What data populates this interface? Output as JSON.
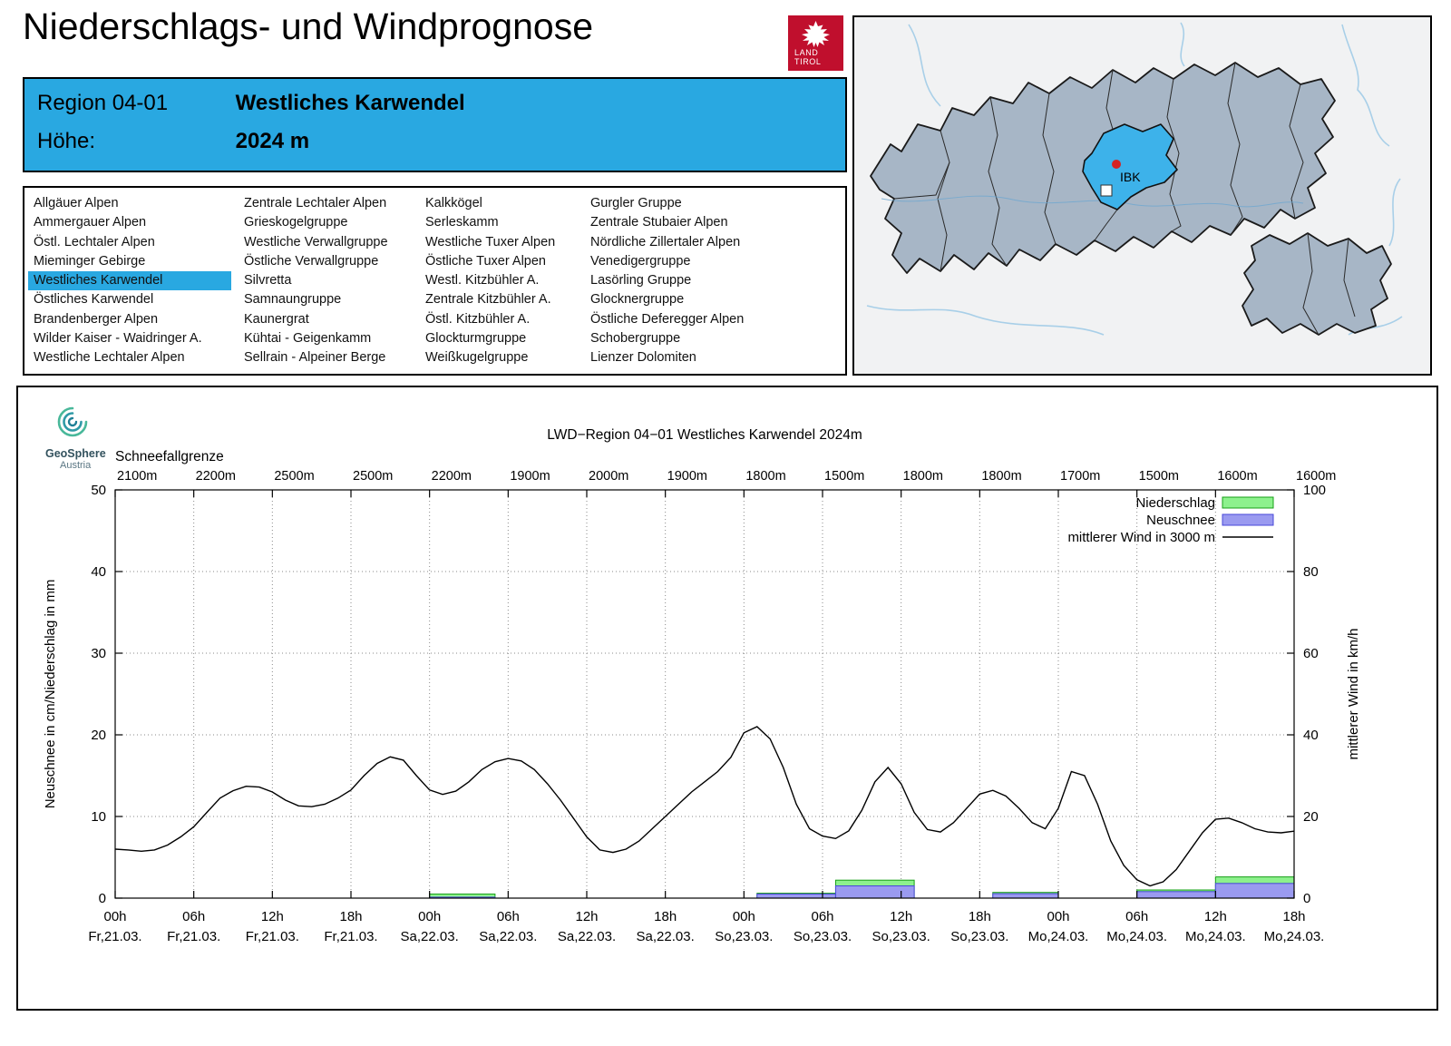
{
  "page": {
    "title": "Niederschlags- und Windprognose"
  },
  "land_tirol_logo": {
    "line1": "LAND",
    "line2": "TIROL"
  },
  "region_header": {
    "region_label": "Region 04-01",
    "region_name": "Westliches Karwendel",
    "hoehe_label": "Höhe:",
    "hoehe_value": "2024 m"
  },
  "region_list": {
    "selected": "Westliches Karwendel",
    "columns": [
      [
        "Allgäuer Alpen",
        "Ammergauer Alpen",
        "Östl. Lechtaler Alpen",
        "Mieminger Gebirge",
        "Westliches Karwendel",
        "Östliches Karwendel",
        "Brandenberger Alpen",
        "Wilder Kaiser - Waidringer A.",
        "Westliche Lechtaler Alpen"
      ],
      [
        "Zentrale Lechtaler Alpen",
        "Grieskogelgruppe",
        "Westliche Verwallgruppe",
        "Östliche Verwallgruppe",
        "Silvretta",
        "Samnaungruppe",
        "Kaunergrat",
        "Kühtai - Geigenkamm",
        "Sellrain - Alpeiner Berge"
      ],
      [
        "Kalkkögel",
        "Serleskamm",
        "Westliche Tuxer Alpen",
        "Östliche Tuxer Alpen",
        "Westl. Kitzbühler A.",
        "Zentrale Kitzbühler A.",
        "Östl. Kitzbühler A.",
        "Glockturmgruppe",
        "Weißkugelgruppe"
      ],
      [
        "Gurgler Gruppe",
        "Zentrale Stubaier Alpen",
        "Nördliche Zillertaler Alpen",
        "Venedigergruppe",
        "Lasörling Gruppe",
        "Glocknergruppe",
        "Östliche Deferegger Alpen",
        "Schobergruppe",
        "Lienzer Dolomiten"
      ]
    ]
  },
  "map": {
    "marker_label": "IBK"
  },
  "geosphere_logo": {
    "line1": "GeoSphere",
    "line2": "Austria"
  },
  "chart_data": {
    "type": "line+bar",
    "title": "LWD−Region 04−01 Westliches Karwendel 2024m",
    "snowline_label": "Schneefallgrenze",
    "snowline_values": [
      "2100m",
      "2200m",
      "2500m",
      "2500m",
      "2200m",
      "1900m",
      "2000m",
      "1900m",
      "1800m",
      "1500m",
      "1800m",
      "1800m",
      "1700m",
      "1500m",
      "1600m",
      "1600m"
    ],
    "ylabel_left": "Neuschnee in cm/Niederschlag in mm",
    "ylabel_right": "mittlerer Wind in km/h",
    "ylim_left": [
      0,
      50
    ],
    "ylim_right": [
      0,
      100
    ],
    "ytick_step_left": 10,
    "ytick_step_right": 20,
    "x_hours_range": [
      0,
      90
    ],
    "grid": true,
    "legend_position": "top-right",
    "x_ticks": [
      {
        "hour": "00h",
        "date": "Fr,21.03."
      },
      {
        "hour": "06h",
        "date": "Fr,21.03."
      },
      {
        "hour": "12h",
        "date": "Fr,21.03."
      },
      {
        "hour": "18h",
        "date": "Fr,21.03."
      },
      {
        "hour": "00h",
        "date": "Sa,22.03."
      },
      {
        "hour": "06h",
        "date": "Sa,22.03."
      },
      {
        "hour": "12h",
        "date": "Sa,22.03."
      },
      {
        "hour": "18h",
        "date": "Sa,22.03."
      },
      {
        "hour": "00h",
        "date": "So,23.03."
      },
      {
        "hour": "06h",
        "date": "So,23.03."
      },
      {
        "hour": "12h",
        "date": "So,23.03."
      },
      {
        "hour": "18h",
        "date": "So,23.03."
      },
      {
        "hour": "00h",
        "date": "Mo,24.03."
      },
      {
        "hour": "06h",
        "date": "Mo,24.03."
      },
      {
        "hour": "12h",
        "date": "Mo,24.03."
      },
      {
        "hour": "18h",
        "date": "Mo,24.03."
      }
    ],
    "legend": [
      {
        "label": "Niederschlag",
        "type": "box",
        "fill": "#8df18d",
        "stroke": "#18a018"
      },
      {
        "label": "Neuschnee",
        "type": "box",
        "fill": "#9a9af0",
        "stroke": "#4848d8"
      },
      {
        "label": "mittlerer Wind in 3000 m",
        "type": "line",
        "stroke": "#000000"
      }
    ],
    "colors": {
      "precip_fill": "#8df18d",
      "precip_stroke": "#18a018",
      "snow_fill": "#9a9af0",
      "snow_stroke": "#4848d8",
      "wind": "#000000"
    },
    "wind_kmh": [
      [
        0,
        12
      ],
      [
        1,
        11.8
      ],
      [
        2,
        11.5
      ],
      [
        3,
        11.8
      ],
      [
        4,
        13
      ],
      [
        5,
        15
      ],
      [
        6,
        17.5
      ],
      [
        7,
        21
      ],
      [
        8,
        24.5
      ],
      [
        9,
        26.3
      ],
      [
        10,
        27.4
      ],
      [
        11,
        27.2
      ],
      [
        12,
        26
      ],
      [
        13,
        24
      ],
      [
        14,
        22.6
      ],
      [
        15,
        22.4
      ],
      [
        16,
        23
      ],
      [
        17,
        24.5
      ],
      [
        18,
        26.5
      ],
      [
        19,
        30
      ],
      [
        20,
        33
      ],
      [
        21,
        34.6
      ],
      [
        22,
        33.8
      ],
      [
        23,
        30
      ],
      [
        24,
        26.5
      ],
      [
        25,
        25.4
      ],
      [
        26,
        26.2
      ],
      [
        27,
        28.5
      ],
      [
        28,
        31.5
      ],
      [
        29,
        33.4
      ],
      [
        30,
        34.2
      ],
      [
        31,
        33.6
      ],
      [
        32,
        31.5
      ],
      [
        33,
        28
      ],
      [
        34,
        24
      ],
      [
        35,
        19.5
      ],
      [
        36,
        15
      ],
      [
        37,
        11.8
      ],
      [
        38,
        11.2
      ],
      [
        39,
        12
      ],
      [
        40,
        14
      ],
      [
        41,
        17
      ],
      [
        42,
        20
      ],
      [
        43,
        23
      ],
      [
        44,
        26
      ],
      [
        45,
        28.5
      ],
      [
        46,
        31
      ],
      [
        47,
        34.5
      ],
      [
        48,
        40.5
      ],
      [
        49,
        42
      ],
      [
        50,
        39
      ],
      [
        51,
        32
      ],
      [
        52,
        23
      ],
      [
        53,
        17
      ],
      [
        54,
        15.2
      ],
      [
        55,
        14.6
      ],
      [
        56,
        16.5
      ],
      [
        57,
        21.5
      ],
      [
        58,
        28.5
      ],
      [
        59,
        32
      ],
      [
        60,
        28
      ],
      [
        61,
        21
      ],
      [
        62,
        16.8
      ],
      [
        63,
        16.2
      ],
      [
        64,
        18.5
      ],
      [
        65,
        22
      ],
      [
        66,
        25.5
      ],
      [
        67,
        26.4
      ],
      [
        68,
        25
      ],
      [
        69,
        22
      ],
      [
        70,
        18.5
      ],
      [
        71,
        17
      ],
      [
        72,
        22
      ],
      [
        73,
        31
      ],
      [
        74,
        30
      ],
      [
        75,
        23
      ],
      [
        76,
        14
      ],
      [
        77,
        8
      ],
      [
        78,
        4.5
      ],
      [
        79,
        3
      ],
      [
        80,
        4
      ],
      [
        81,
        7
      ],
      [
        82,
        11.5
      ],
      [
        83,
        16
      ],
      [
        84,
        19.3
      ],
      [
        85,
        19.6
      ],
      [
        86,
        18.5
      ],
      [
        87,
        17
      ],
      [
        88,
        16.2
      ],
      [
        89,
        16
      ],
      [
        90,
        16.4
      ]
    ],
    "bars": [
      {
        "from": 24,
        "to": 29,
        "precip_mm": 0.5,
        "snow_cm": 0.12
      },
      {
        "from": 49,
        "to": 55,
        "precip_mm": 0.6,
        "snow_cm": 0.5
      },
      {
        "from": 55,
        "to": 61,
        "precip_mm": 2.2,
        "snow_cm": 1.5
      },
      {
        "from": 67,
        "to": 72,
        "precip_mm": 0.7,
        "snow_cm": 0.55
      },
      {
        "from": 78,
        "to": 84,
        "precip_mm": 1.0,
        "snow_cm": 0.8
      },
      {
        "from": 84,
        "to": 90,
        "precip_mm": 2.6,
        "snow_cm": 1.8
      }
    ]
  }
}
